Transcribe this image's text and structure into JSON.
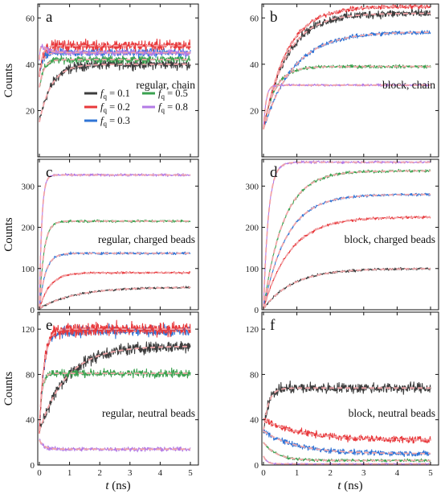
{
  "chart_data": {
    "type": "line",
    "panels": [
      {
        "letter": "a",
        "annotation": "regular, chain",
        "ylabel": "Counts",
        "xlabel": "",
        "xlim": [
          0,
          5
        ],
        "ylim": [
          0,
          66
        ],
        "xticks": [],
        "yticks": [
          20,
          40,
          60
        ],
        "series": [
          {
            "name": "f_q = 0.1",
            "plateau": 40,
            "start": 15,
            "tau": 0.4,
            "noise": 1.8
          },
          {
            "name": "f_q = 0.2",
            "plateau": 48,
            "start": 35,
            "tau": 0.1,
            "noise": 2.0
          },
          {
            "name": "f_q = 0.3",
            "plateau": 45,
            "start": 35,
            "tau": 0.12,
            "noise": 1.5
          },
          {
            "name": "f_q = 0.5",
            "plateau": 42,
            "start": 30,
            "tau": 0.15,
            "noise": 1.3
          },
          {
            "name": "f_q = 0.8",
            "plateau": 45,
            "start": 42,
            "tau": 0.04,
            "noise": 1.0,
            "overshoot": 5,
            "overshootTau": 0.2
          }
        ]
      },
      {
        "letter": "b",
        "annotation": "block, chain",
        "ylabel": "",
        "xlabel": "",
        "xlim": [
          0,
          5
        ],
        "ylim": [
          0,
          66
        ],
        "xticks": [],
        "yticks": [
          20,
          40,
          60
        ],
        "series": [
          {
            "name": "f_q = 0.1",
            "plateau": 62,
            "start": 12,
            "tau": 0.7,
            "noise": 1.5
          },
          {
            "name": "f_q = 0.2",
            "plateau": 65,
            "start": 12,
            "tau": 0.7,
            "noise": 0.8
          },
          {
            "name": "f_q = 0.3",
            "plateau": 54,
            "start": 12,
            "tau": 0.9,
            "noise": 0.8
          },
          {
            "name": "f_q = 0.5",
            "plateau": 39,
            "start": 12,
            "tau": 0.35,
            "noise": 0.6
          },
          {
            "name": "f_q = 0.8",
            "plateau": 31,
            "start": 12,
            "tau": 0.08,
            "noise": 0.4
          }
        ]
      },
      {
        "letter": "c",
        "annotation": "regular, charged beads",
        "ylabel": "Counts",
        "xlabel": "",
        "xlim": [
          0,
          5
        ],
        "ylim": [
          0,
          365
        ],
        "xticks": [],
        "yticks": [
          0,
          100,
          200,
          300
        ],
        "series": [
          {
            "name": "f_q = 0.1",
            "plateau": 55,
            "start": 3,
            "tau": 1.2,
            "noise": 2.0
          },
          {
            "name": "f_q = 0.2",
            "plateau": 90,
            "start": 3,
            "tau": 0.35,
            "noise": 2.0
          },
          {
            "name": "f_q = 0.3",
            "plateau": 137,
            "start": 3,
            "tau": 0.2,
            "noise": 2.5
          },
          {
            "name": "f_q = 0.5",
            "plateau": 215,
            "start": 3,
            "tau": 0.15,
            "noise": 2.5
          },
          {
            "name": "f_q = 0.8",
            "plateau": 327,
            "start": 3,
            "tau": 0.08,
            "noise": 2.5
          }
        ]
      },
      {
        "letter": "d",
        "annotation": "block, charged beads",
        "ylabel": "",
        "xlabel": "",
        "xlim": [
          0,
          5
        ],
        "ylim": [
          0,
          365
        ],
        "xticks": [],
        "yticks": [
          0,
          100,
          200,
          300
        ],
        "series": [
          {
            "name": "f_q = 0.1",
            "plateau": 100,
            "start": 3,
            "tau": 0.9,
            "noise": 2.5
          },
          {
            "name": "f_q = 0.2",
            "plateau": 225,
            "start": 3,
            "tau": 0.8,
            "noise": 2.5
          },
          {
            "name": "f_q = 0.3",
            "plateau": 280,
            "start": 3,
            "tau": 0.7,
            "noise": 2.5
          },
          {
            "name": "f_q = 0.5",
            "plateau": 337,
            "start": 3,
            "tau": 0.6,
            "noise": 3.0
          },
          {
            "name": "f_q = 0.8",
            "plateau": 358,
            "start": 3,
            "tau": 0.15,
            "noise": 2.5
          }
        ]
      },
      {
        "letter": "e",
        "annotation": "regular, neutral beads",
        "ylabel": "Counts",
        "xlabel": "t (ns)",
        "xlim": [
          0,
          5
        ],
        "ylim": [
          0,
          135
        ],
        "xticks": [
          0,
          1,
          2,
          3,
          4,
          5
        ],
        "yticks": [
          0,
          40,
          80,
          120
        ],
        "series": [
          {
            "name": "f_q = 0.1",
            "plateau": 105,
            "start": 30,
            "tau": 0.9,
            "noise": 4.5
          },
          {
            "name": "f_q = 0.2",
            "plateau": 120,
            "start": 30,
            "tau": 0.15,
            "noise": 5.0
          },
          {
            "name": "f_q = 0.3",
            "plateau": 118,
            "start": 30,
            "tau": 0.15,
            "noise": 4.0
          },
          {
            "name": "f_q = 0.5",
            "plateau": 81,
            "start": 30,
            "tau": 0.08,
            "noise": 3.0
          },
          {
            "name": "f_q = 0.8",
            "plateau": 14,
            "start": 22,
            "tau": 0.15,
            "noise": 1.5
          }
        ]
      },
      {
        "letter": "f",
        "annotation": "block, neutral beads",
        "ylabel": "",
        "xlabel": "t (ns)",
        "xlim": [
          0,
          5
        ],
        "ylim": [
          0,
          135
        ],
        "xticks": [
          0,
          1,
          2,
          3,
          4,
          5
        ],
        "yticks": [
          0,
          40,
          80,
          120
        ],
        "series": [
          {
            "name": "f_q = 0.1",
            "plateau": 68,
            "start": 30,
            "tau": 0.15,
            "noise": 4.0
          },
          {
            "name": "f_q = 0.2",
            "plateau": 22,
            "start": 40,
            "tau": 1.2,
            "noise": 2.5
          },
          {
            "name": "f_q = 0.3",
            "plateau": 10,
            "start": 30,
            "tau": 1.0,
            "noise": 2.0
          },
          {
            "name": "f_q = 0.5",
            "plateau": 4,
            "start": 20,
            "tau": 0.4,
            "noise": 1.0
          },
          {
            "name": "f_q = 0.8",
            "plateau": 1,
            "start": 8,
            "tau": 0.1,
            "noise": 0.5
          }
        ]
      }
    ],
    "legend": {
      "location": "panel a, lower right",
      "entries": [
        {
          "prefix": "f",
          "sub": "q",
          "value": " = 0.1",
          "color": "#3d3d3d"
        },
        {
          "prefix": "f",
          "sub": "q",
          "value": " = 0.5",
          "color": "#3aa14f"
        },
        {
          "prefix": "f",
          "sub": "q",
          "value": " = 0.2",
          "color": "#e8383b"
        },
        {
          "prefix": "f",
          "sub": "q",
          "value": " = 0.8",
          "color": "#b37ae6"
        },
        {
          "prefix": "f",
          "sub": "q",
          "value": " = 0.3",
          "color": "#2f74d6"
        }
      ]
    },
    "colors": {
      "f_q = 0.1": "#3d3d3d",
      "f_q = 0.2": "#e8383b",
      "f_q = 0.3": "#2f74d6",
      "f_q = 0.5": "#3aa14f",
      "f_q = 0.8": "#b37ae6"
    },
    "fit_color": "#f2a5a8"
  }
}
